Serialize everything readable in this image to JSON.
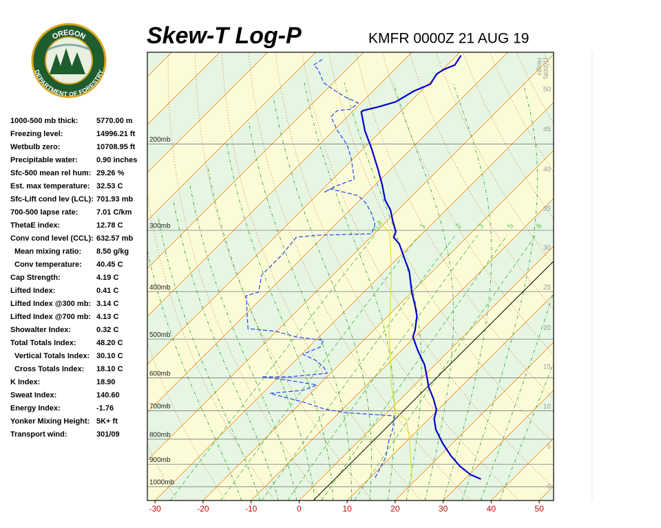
{
  "logo": {
    "top": "OREGON",
    "bottom": "DEPARTMENT OF FORESTRY"
  },
  "indices": [
    {
      "label": "1000-500 mb thick:",
      "value": "5770.00 m"
    },
    {
      "label": "Freezing level:",
      "value": "14996.21 ft"
    },
    {
      "label": "Wetbulb zero:",
      "value": "10708.95 ft"
    },
    {
      "label": "Precipitable water:",
      "value": "0.90 inches"
    },
    {
      "label": "Sfc-500 mean rel hum:",
      "value": "29.26 %"
    },
    {
      "label": "Est. max temperature:",
      "value": "32.53 C"
    },
    {
      "label": "Sfc-Lift cond lev (LCL):",
      "value": "701.93 mb"
    },
    {
      "label": "700-500 lapse rate:",
      "value": "7.01 C/km"
    },
    {
      "label": "ThetaE index:",
      "value": "12.78 C"
    },
    {
      "label": "Conv cond level (CCL):",
      "value": "632.57 mb"
    },
    {
      "label": "Mean mixing ratio:",
      "value": "8.50 g/kg",
      "sub": true
    },
    {
      "label": "Conv temperature:",
      "value": "40.45 C",
      "sub": true
    },
    {
      "label": "Cap Strength:",
      "value": "4.19 C"
    },
    {
      "label": "Lifted Index:",
      "value": "0.41 C"
    },
    {
      "label": "Lifted Index @300 mb:",
      "value": "3.14 C"
    },
    {
      "label": "Lifted Index @700 mb:",
      "value": "4.13 C"
    },
    {
      "label": "Showalter Index:",
      "value": "0.32 C"
    },
    {
      "label": "Total Totals Index:",
      "value": "48.20 C"
    },
    {
      "label": "Vertical Totals Index:",
      "value": "30.10 C",
      "sub": true
    },
    {
      "label": "Cross Totals Index:",
      "value": "18.10 C",
      "sub": true
    },
    {
      "label": "K Index:",
      "value": "18.90"
    },
    {
      "label": "Sweat Index:",
      "value": "140.60"
    },
    {
      "label": "Energy Index:",
      "value": "-1.76"
    },
    {
      "label": "Yonker Mixing Height:",
      "value": "5K+ ft"
    },
    {
      "label": "Transport wind:",
      "value": "301/09"
    }
  ],
  "chart_data": {
    "type": "skewt",
    "title": "Skew-T Log-P",
    "subtitle": "KMFR 0000Z 21 AUG 19",
    "xlim": [
      -31.6,
      53
    ],
    "xticks": [
      -30,
      -20,
      -10,
      0,
      10,
      20,
      30,
      40,
      50
    ],
    "ylim": [
      1067,
      130
    ],
    "log": true,
    "grid": true,
    "yticks": [
      {
        "value": 1000,
        "label": "1000mb"
      },
      {
        "value": 900,
        "label": "900mb"
      },
      {
        "value": 800,
        "label": "800mb"
      },
      {
        "value": 700,
        "label": "700mb"
      },
      {
        "value": 600,
        "label": "600mb"
      },
      {
        "value": 500,
        "label": "500mb"
      },
      {
        "value": 400,
        "label": "400mb"
      },
      {
        "value": 300,
        "label": "300mb"
      },
      {
        "value": 200,
        "label": "200mb"
      }
    ],
    "mixing_ratios": [
      0.4,
      1,
      2,
      3,
      5,
      8
    ],
    "height_axis": {
      "title": [
        "Height",
        "(1000ft)"
      ],
      "ticks": [
        0,
        5,
        10,
        15,
        20,
        25,
        30,
        35,
        40,
        45,
        50
      ],
      "pressure": [
        1006,
        835,
        692,
        574,
        478,
        395,
        328,
        273,
        227,
        188,
        156
      ]
    },
    "series": [
      {
        "color": "#0000cc",
        "style": "solid",
        "pressure": [
          965,
          944,
          908,
          865,
          816,
          765,
          727,
          697,
          662,
          626,
          591,
          563,
          528,
          495,
          479,
          449,
          428,
          401,
          364,
          342,
          320,
          310,
          302,
          286,
          273,
          260,
          242,
          225,
          204,
          188,
          172,
          171,
          168,
          164,
          156,
          151,
          144,
          141,
          138,
          132
        ],
        "values": [
          33.4,
          30.2,
          26.3,
          22.3,
          18.0,
          13.7,
          11.1,
          9.7,
          6.8,
          3.3,
          0.3,
          -2.3,
          -6.5,
          -10.4,
          -11.4,
          -13.9,
          -16.4,
          -20.0,
          -24.8,
          -28.6,
          -32.6,
          -35.2,
          -35.9,
          -39.0,
          -41.5,
          -44.8,
          -48.6,
          -52.7,
          -58.4,
          -63.4,
          -68.1,
          -68.0,
          -65.6,
          -63.0,
          -61.5,
          -59.5,
          -60.3,
          -59.8,
          -58.4,
          -59.1
        ]
      },
      {
        "color": "#2244ee",
        "style": "dashed",
        "pressure": [
          959,
          928,
          870,
          803,
          765,
          717,
          706,
          694,
          672,
          645,
          636,
          620,
          607,
          597,
          597,
          587,
          572,
          554,
          537,
          519,
          503,
          495,
          482,
          476,
          408,
          401,
          370,
          347,
          336,
          310,
          307,
          305,
          291,
          277,
          264,
          255,
          247,
          251,
          243,
          236,
          214,
          201,
          188,
          176,
          171,
          170,
          165,
          160,
          155,
          150,
          141,
          138,
          134
        ],
        "values": [
          11.1,
          10.4,
          9.0,
          6.1,
          4.7,
          2.1,
          -8.9,
          -13.9,
          -19.7,
          -28.4,
          -22.1,
          -20.4,
          -27.1,
          -33.6,
          -27.8,
          -20.7,
          -22.5,
          -25.4,
          -29.7,
          -27.6,
          -28.3,
          -34.7,
          -40.2,
          -46.5,
          -53.7,
          -51.9,
          -54.8,
          -54.8,
          -54.8,
          -55.5,
          -51.6,
          -40.5,
          -41.9,
          -44.8,
          -48.1,
          -51.2,
          -58.4,
          -59.1,
          -57.7,
          -55.5,
          -60.5,
          -64.1,
          -69.1,
          -73.4,
          -73.4,
          -70.9,
          -70.6,
          -74.9,
          -78.5,
          -82.0,
          -85.9,
          -87.8,
          -87.1
        ]
      },
      {
        "color": "#e0e030",
        "style": "solid",
        "pressure": [
          975,
          803,
          729,
          706,
          620,
          479,
          370,
          305,
          286
        ],
        "values": [
          19.5,
          10.4,
          5.4,
          1.8,
          -4.9,
          -16.8,
          -27.8,
          -36.7,
          -41.9
        ]
      }
    ]
  }
}
